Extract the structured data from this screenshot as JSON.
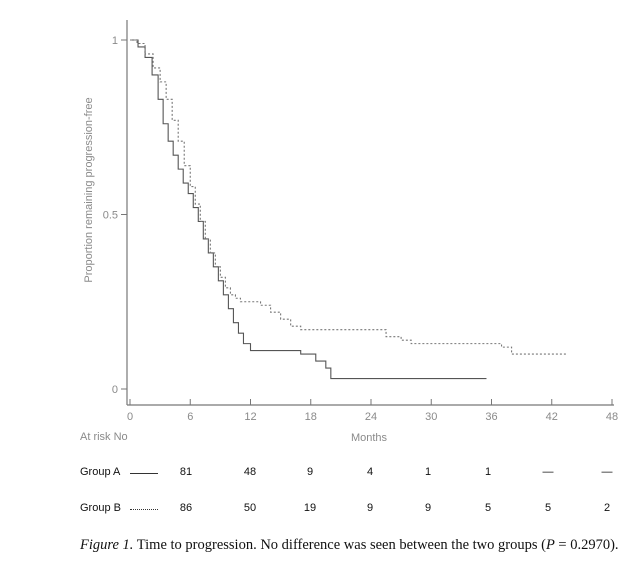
{
  "chart_data": {
    "type": "line",
    "ylabel": "Proportion remaining progression-free",
    "xlabel": "Months",
    "xlim": [
      0,
      48
    ],
    "ylim": [
      0,
      1
    ],
    "x_ticks": [
      "0",
      "6",
      "12",
      "18",
      "24",
      "30",
      "36",
      "42",
      "48"
    ],
    "y_ticks": [
      "0",
      "0.5",
      "1"
    ],
    "series": [
      {
        "name": "Group A",
        "style": "solid",
        "color": "#555555",
        "x": [
          0,
          0.8,
          1.5,
          2.2,
          2.8,
          3.3,
          3.8,
          4.3,
          4.8,
          5.3,
          5.8,
          6.3,
          6.8,
          7.3,
          7.8,
          8.3,
          8.8,
          9.3,
          9.8,
          10.3,
          10.8,
          11.3,
          12.0,
          13.0,
          14.0,
          17.0,
          18.5,
          19.5,
          20.0,
          24.0,
          30.0,
          35.5
        ],
        "y": [
          1.0,
          0.98,
          0.95,
          0.9,
          0.83,
          0.76,
          0.71,
          0.67,
          0.63,
          0.59,
          0.56,
          0.52,
          0.48,
          0.43,
          0.39,
          0.35,
          0.31,
          0.27,
          0.23,
          0.19,
          0.16,
          0.13,
          0.11,
          0.11,
          0.11,
          0.1,
          0.08,
          0.06,
          0.03,
          0.03,
          0.03,
          0.03
        ]
      },
      {
        "name": "Group B",
        "style": "dotted",
        "color": "#777777",
        "x": [
          0,
          0.7,
          1.5,
          2.3,
          3.0,
          3.6,
          4.2,
          4.8,
          5.4,
          6.0,
          6.5,
          7.0,
          7.5,
          8.0,
          8.5,
          9.0,
          9.5,
          10.0,
          10.5,
          11.0,
          12.0,
          13.0,
          14.0,
          15.0,
          16.0,
          17.0,
          20.0,
          24.0,
          25.5,
          27.0,
          28.0,
          31.0,
          37.0,
          38.0,
          43.5
        ],
        "y": [
          1.0,
          0.99,
          0.96,
          0.92,
          0.88,
          0.83,
          0.77,
          0.71,
          0.64,
          0.58,
          0.53,
          0.48,
          0.43,
          0.39,
          0.35,
          0.32,
          0.29,
          0.27,
          0.26,
          0.25,
          0.25,
          0.24,
          0.22,
          0.2,
          0.18,
          0.17,
          0.17,
          0.17,
          0.15,
          0.14,
          0.13,
          0.13,
          0.12,
          0.1,
          0.1
        ]
      }
    ]
  },
  "risk_table": {
    "header": "At risk  No",
    "groups": [
      {
        "label": "Group A",
        "line_style": "solid",
        "values": [
          "81",
          "48",
          "9",
          "4",
          "1",
          "1",
          "—",
          "—"
        ]
      },
      {
        "label": "Group B",
        "line_style": "dotted",
        "values": [
          "86",
          "50",
          "19",
          "9",
          "9",
          "5",
          "5",
          "2"
        ]
      }
    ]
  },
  "caption": {
    "figure": "Figure 1.",
    "text_1": " Time to progression. No difference was seen between the two groups (",
    "p_symbol": "P",
    "text_2": " = 0.2970)."
  }
}
